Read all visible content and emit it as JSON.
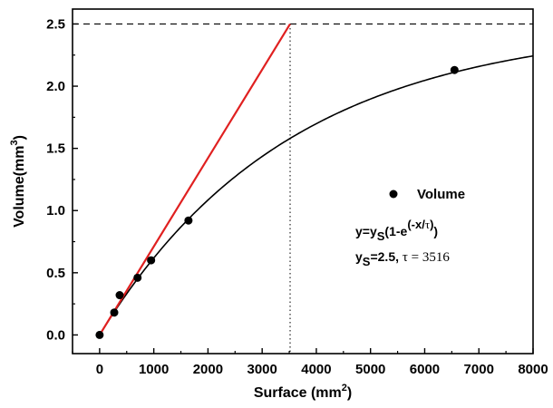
{
  "chart_data": {
    "type": "scatter",
    "xlabel": "Surface (mm",
    "xlabel_sup": "2",
    "xlabel_end": ")",
    "ylabel": "Volume(mm",
    "ylabel_sup": "3",
    "ylabel_end": ")",
    "xlim": [
      -500,
      8000
    ],
    "ylim": [
      -0.15,
      2.62
    ],
    "x_ticks": [
      0,
      1000,
      2000,
      3000,
      4000,
      5000,
      6000,
      7000,
      8000
    ],
    "y_ticks": [
      0.0,
      0.5,
      1.0,
      1.5,
      2.0,
      2.5
    ],
    "x_tick_labels": [
      "0",
      "1000",
      "2000",
      "3000",
      "4000",
      "5000",
      "6000",
      "7000",
      "8000"
    ],
    "y_tick_labels": [
      "0.0",
      "0.5",
      "1.0",
      "1.5",
      "2.0",
      "2.5"
    ],
    "grid": false,
    "legend_position": "right",
    "series": [
      {
        "name": "Volume",
        "style": "markers",
        "color": "#000000",
        "points": [
          {
            "x": 0,
            "y": 0.0
          },
          {
            "x": 270,
            "y": 0.18
          },
          {
            "x": 370,
            "y": 0.32
          },
          {
            "x": 700,
            "y": 0.46
          },
          {
            "x": 950,
            "y": 0.6
          },
          {
            "x": 1640,
            "y": 0.92
          },
          {
            "x": 6550,
            "y": 2.13
          }
        ]
      }
    ],
    "fit": {
      "equation": "y = ys(1 - e^(-x/τ))",
      "ys": 2.5,
      "tau": 3516,
      "color": "#000000"
    },
    "tangent": {
      "from": {
        "x": 0,
        "y": 0.0
      },
      "to": {
        "x": 3516,
        "y": 2.5
      },
      "color": "#e02020"
    },
    "reference_lines": {
      "horizontal_y": 2.5,
      "vertical_x": 3516
    },
    "legend": {
      "label": "Volume",
      "eq_line1": {
        "a": "y=y",
        "sub": "S",
        "b": "(1-e",
        "sup": "(-x/",
        "tau": "τ",
        "sup_end": ")",
        "c": ")"
      },
      "eq_line2": {
        "a": "y",
        "sub": "S",
        "b": "=2.5, ",
        "tau_expr": "τ = 3516"
      }
    }
  }
}
